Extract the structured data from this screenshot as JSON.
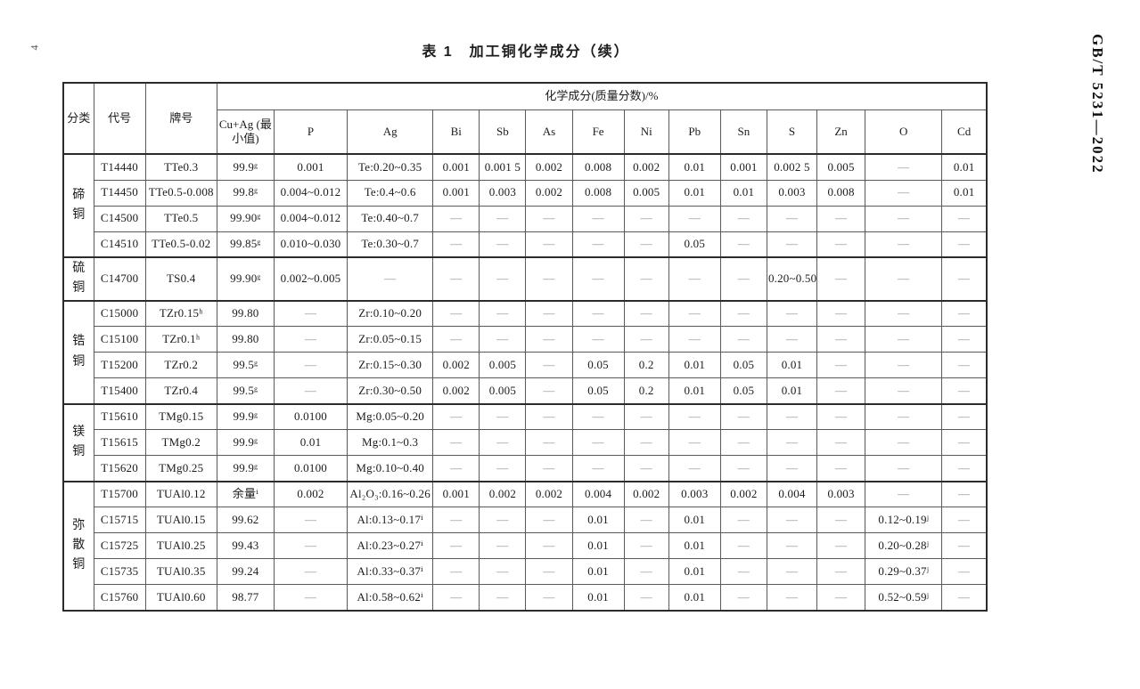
{
  "page": {
    "page_number": "4",
    "standard_ref": "GB/T 5231—2022",
    "table_title": "表 1　加工铜化学成分（续）"
  },
  "table": {
    "col_headers": {
      "category": "分类",
      "code": "代号",
      "grade": "牌号",
      "composition_span": "化学成分(质量分数)/%"
    },
    "element_headers": [
      "Cu+Ag (最小值)",
      "P",
      "Ag",
      "Bi",
      "Sb",
      "As",
      "Fe",
      "Ni",
      "Pb",
      "Sn",
      "S",
      "Zn",
      "O",
      "Cd"
    ],
    "groups": [
      {
        "category": "碲\n铜",
        "rows": [
          {
            "code": "T14440",
            "grade": "TTe0.3",
            "values": [
              "99.9ᵍ",
              "0.001",
              "Te:0.20~0.35",
              "0.001",
              "0.001 5",
              "0.002",
              "0.008",
              "0.002",
              "0.01",
              "0.001",
              "0.002 5",
              "0.005",
              "—",
              "0.01"
            ]
          },
          {
            "code": "T14450",
            "grade": "TTe0.5-0.008",
            "values": [
              "99.8ᵍ",
              "0.004~0.012",
              "Te:0.4~0.6",
              "0.001",
              "0.003",
              "0.002",
              "0.008",
              "0.005",
              "0.01",
              "0.01",
              "0.003",
              "0.008",
              "—",
              "0.01"
            ]
          },
          {
            "code": "C14500",
            "grade": "TTe0.5",
            "values": [
              "99.90ᵍ",
              "0.004~0.012",
              "Te:0.40~0.7",
              "—",
              "—",
              "—",
              "—",
              "—",
              "—",
              "—",
              "—",
              "—",
              "—",
              "—"
            ]
          },
          {
            "code": "C14510",
            "grade": "TTe0.5-0.02",
            "values": [
              "99.85ᵍ",
              "0.010~0.030",
              "Te:0.30~0.7",
              "—",
              "—",
              "—",
              "—",
              "—",
              "0.05",
              "—",
              "—",
              "—",
              "—",
              "—"
            ]
          }
        ]
      },
      {
        "category": "硫\n铜",
        "rows": [
          {
            "code": "C14700",
            "grade": "TS0.4",
            "values": [
              "99.90ᵍ",
              "0.002~0.005",
              "—",
              "—",
              "—",
              "—",
              "—",
              "—",
              "—",
              "—",
              "0.20~0.50",
              "—",
              "—",
              "—"
            ]
          }
        ]
      },
      {
        "category": "锆\n铜",
        "rows": [
          {
            "code": "C15000",
            "grade": "TZr0.15ʰ",
            "values": [
              "99.80",
              "—",
              "Zr:0.10~0.20",
              "—",
              "—",
              "—",
              "—",
              "—",
              "—",
              "—",
              "—",
              "—",
              "—",
              "—"
            ]
          },
          {
            "code": "C15100",
            "grade": "TZr0.1ʰ",
            "values": [
              "99.80",
              "—",
              "Zr:0.05~0.15",
              "—",
              "—",
              "—",
              "—",
              "—",
              "—",
              "—",
              "—",
              "—",
              "—",
              "—"
            ]
          },
          {
            "code": "T15200",
            "grade": "TZr0.2",
            "values": [
              "99.5ᵍ",
              "—",
              "Zr:0.15~0.30",
              "0.002",
              "0.005",
              "—",
              "0.05",
              "0.2",
              "0.01",
              "0.05",
              "0.01",
              "—",
              "—",
              "—"
            ]
          },
          {
            "code": "T15400",
            "grade": "TZr0.4",
            "values": [
              "99.5ᵍ",
              "—",
              "Zr:0.30~0.50",
              "0.002",
              "0.005",
              "—",
              "0.05",
              "0.2",
              "0.01",
              "0.05",
              "0.01",
              "—",
              "—",
              "—"
            ]
          }
        ]
      },
      {
        "category": "镁\n铜",
        "rows": [
          {
            "code": "T15610",
            "grade": "TMg0.15",
            "values": [
              "99.9ᵍ",
              "0.0100",
              "Mg:0.05~0.20",
              "—",
              "—",
              "—",
              "—",
              "—",
              "—",
              "—",
              "—",
              "—",
              "—",
              "—"
            ]
          },
          {
            "code": "T15615",
            "grade": "TMg0.2",
            "values": [
              "99.9ᵍ",
              "0.01",
              "Mg:0.1~0.3",
              "—",
              "—",
              "—",
              "—",
              "—",
              "—",
              "—",
              "—",
              "—",
              "—",
              "—"
            ]
          },
          {
            "code": "T15620",
            "grade": "TMg0.25",
            "values": [
              "99.9ᵍ",
              "0.0100",
              "Mg:0.10~0.40",
              "—",
              "—",
              "—",
              "—",
              "—",
              "—",
              "—",
              "—",
              "—",
              "—",
              "—"
            ]
          }
        ]
      },
      {
        "category": "弥\n散\n铜",
        "rows": [
          {
            "code": "T15700",
            "grade": "TUAl0.12",
            "values": [
              "余量ⁱ",
              "0.002",
              "Al₂O₃:0.16~0.26",
              "0.001",
              "0.002",
              "0.002",
              "0.004",
              "0.002",
              "0.003",
              "0.002",
              "0.004",
              "0.003",
              "—",
              "—"
            ]
          },
          {
            "code": "C15715",
            "grade": "TUAl0.15",
            "values": [
              "99.62",
              "—",
              "Al:0.13~0.17ⁱ",
              "—",
              "—",
              "—",
              "0.01",
              "—",
              "0.01",
              "—",
              "—",
              "—",
              "0.12~0.19ʲ",
              "—"
            ]
          },
          {
            "code": "C15725",
            "grade": "TUAl0.25",
            "values": [
              "99.43",
              "—",
              "Al:0.23~0.27ⁱ",
              "—",
              "—",
              "—",
              "0.01",
              "—",
              "0.01",
              "—",
              "—",
              "—",
              "0.20~0.28ʲ",
              "—"
            ]
          },
          {
            "code": "C15735",
            "grade": "TUAl0.35",
            "values": [
              "99.24",
              "—",
              "Al:0.33~0.37ⁱ",
              "—",
              "—",
              "—",
              "0.01",
              "—",
              "0.01",
              "—",
              "—",
              "—",
              "0.29~0.37ʲ",
              "—"
            ]
          },
          {
            "code": "C15760",
            "grade": "TUAl0.60",
            "values": [
              "98.77",
              "—",
              "Al:0.58~0.62ⁱ",
              "—",
              "—",
              "—",
              "0.01",
              "—",
              "0.01",
              "—",
              "—",
              "—",
              "0.52~0.59ʲ",
              "—"
            ]
          }
        ]
      }
    ]
  }
}
